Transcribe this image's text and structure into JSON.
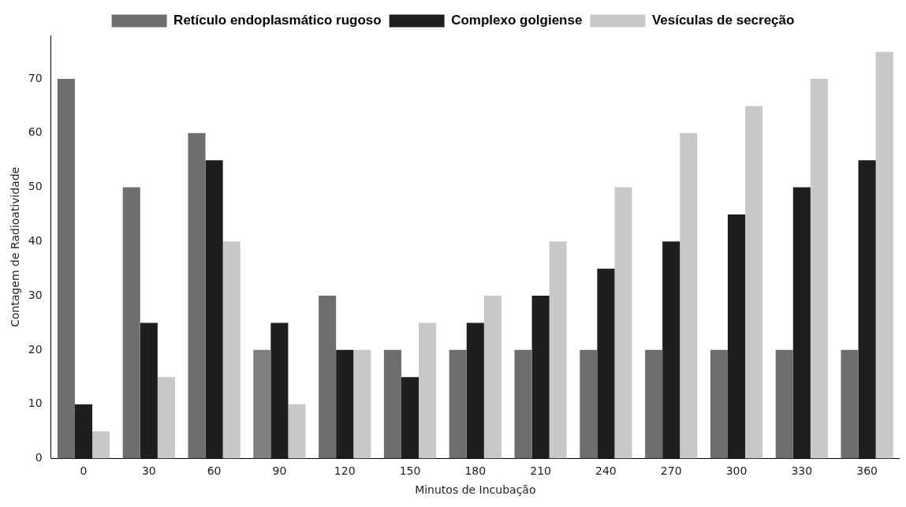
{
  "chart_data": {
    "type": "bar",
    "xlabel": "Minutos de Incubação",
    "ylabel": "Contagem de Radioatividade",
    "categories": [
      "0",
      "30",
      "60",
      "90",
      "120",
      "150",
      "180",
      "210",
      "240",
      "270",
      "300",
      "330",
      "360"
    ],
    "series": [
      {
        "name": "Retículo endoplasmático rugoso",
        "color": "#6e6e6e",
        "colors": [
          "#6e6e6e",
          "#6e6e6e",
          "#6e6e6e",
          "#808080",
          "#6e6e6e",
          "#6e6e6e",
          "#6e6e6e",
          "#6e6e6e",
          "#6e6e6e",
          "#6e6e6e",
          "#6e6e6e",
          "#6e6e6e",
          "#6e6e6e"
        ],
        "values": [
          70,
          50,
          60,
          20,
          30,
          20,
          20,
          20,
          20,
          20,
          20,
          20,
          20
        ]
      },
      {
        "name": "Complexo golgiense",
        "color": "#1e1e1e",
        "values": [
          10,
          25,
          55,
          25,
          20,
          15,
          25,
          30,
          35,
          40,
          45,
          50,
          55
        ]
      },
      {
        "name": "Vesículas de secreção",
        "color": "#c8c8c8",
        "values": [
          5,
          15,
          40,
          10,
          20,
          25,
          30,
          40,
          50,
          60,
          65,
          70,
          75
        ]
      }
    ],
    "ylim": [
      0,
      78
    ],
    "yticks": [
      0,
      10,
      20,
      30,
      40,
      50,
      60,
      70
    ],
    "grid": false,
    "legend": "top"
  }
}
